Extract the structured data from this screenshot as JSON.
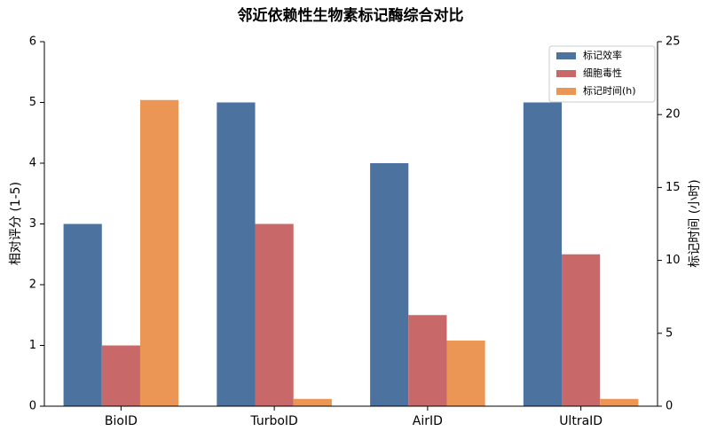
{
  "chart_data": {
    "type": "bar",
    "title": "邻近依赖性生物素标记酶综合对比",
    "categories": [
      "BioID",
      "TurboID",
      "AirID",
      "UltraID"
    ],
    "series": [
      {
        "name": "标记效率",
        "color": "#4c72a0",
        "values": [
          3,
          5,
          4,
          5
        ]
      },
      {
        "name": "细胞毒性",
        "color": "#c86868",
        "values": [
          1,
          3,
          1.5,
          2.5
        ]
      },
      {
        "name": "标记时间(h)",
        "color": "#ec9656",
        "values": [
          21,
          0.5,
          4.5,
          0.5
        ],
        "axis": "y2"
      }
    ],
    "ylabel": "相对评分 (1-5)",
    "y2label": "标记时间 (小时)",
    "ylim": [
      0,
      6
    ],
    "yticks": [
      0,
      1,
      2,
      3,
      4,
      5,
      6
    ],
    "y2lim": [
      0,
      25
    ],
    "y2ticks": [
      0,
      5,
      10,
      15,
      20,
      25
    ],
    "legend": "upper right"
  }
}
